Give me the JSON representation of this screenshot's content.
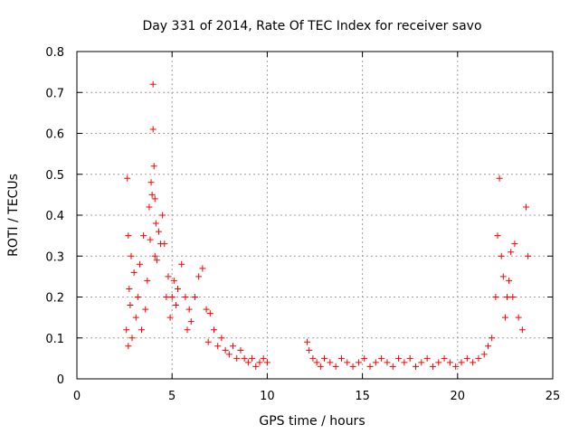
{
  "chart_data": {
    "type": "scatter",
    "title": "Day 331 of 2014, Rate Of TEC Index for receiver savo",
    "xlabel": "GPS time / hours",
    "ylabel": "ROTI / TECUs",
    "xlim": [
      0,
      25
    ],
    "ylim": [
      0,
      0.8
    ],
    "xticks": [
      0,
      5,
      10,
      15,
      20,
      25
    ],
    "yticks": [
      0,
      0.1,
      0.2,
      0.3,
      0.4,
      0.5,
      0.6,
      0.7,
      0.8
    ],
    "xtick_labels": [
      "0",
      "5",
      "10",
      "15",
      "20",
      "25"
    ],
    "ytick_labels": [
      "0",
      "0.1",
      "0.2",
      "0.3",
      "0.4",
      "0.5",
      "0.6",
      "0.7",
      "0.8"
    ],
    "grid": true,
    "marker": "+",
    "color": "#ff0000",
    "series": [
      {
        "x": [
          2.6,
          2.65,
          2.7,
          2.7,
          2.75,
          2.8,
          2.85,
          2.9,
          3.0,
          3.1,
          3.2,
          3.3,
          3.4,
          3.5,
          3.6,
          3.7,
          3.8,
          3.85,
          3.9,
          3.95,
          4.0,
          4.0,
          4.05,
          4.1,
          4.1,
          4.15,
          4.2,
          4.3,
          4.4,
          4.5,
          4.6,
          4.7,
          4.8,
          4.9,
          5.0,
          5.1,
          5.2,
          5.3,
          5.5,
          5.7,
          5.8,
          5.9,
          6.0,
          6.2,
          6.4,
          6.6,
          6.8,
          6.9,
          7.0,
          7.2,
          7.4,
          7.6,
          7.8,
          8.0,
          8.2,
          8.4,
          8.6,
          8.8,
          9.0,
          9.2,
          9.4,
          9.6,
          9.8,
          10.0,
          12.1,
          12.2,
          12.4,
          12.6,
          12.8,
          13.0,
          13.3,
          13.6,
          13.9,
          14.2,
          14.5,
          14.8,
          15.1,
          15.4,
          15.7,
          16.0,
          16.3,
          16.6,
          16.9,
          17.2,
          17.5,
          17.8,
          18.1,
          18.4,
          18.7,
          19.0,
          19.3,
          19.6,
          19.9,
          20.2,
          20.5,
          20.8,
          21.1,
          21.4,
          21.6,
          21.8,
          22.0,
          22.1,
          22.2,
          22.3,
          22.4,
          22.5,
          22.6,
          22.7,
          22.8,
          22.9,
          23.0,
          23.2,
          23.4,
          23.6,
          23.7
        ],
        "y": [
          0.12,
          0.49,
          0.35,
          0.08,
          0.22,
          0.18,
          0.3,
          0.1,
          0.26,
          0.15,
          0.2,
          0.28,
          0.12,
          0.35,
          0.17,
          0.24,
          0.42,
          0.34,
          0.48,
          0.45,
          0.72,
          0.61,
          0.52,
          0.44,
          0.3,
          0.38,
          0.29,
          0.36,
          0.33,
          0.4,
          0.33,
          0.2,
          0.25,
          0.15,
          0.2,
          0.24,
          0.18,
          0.22,
          0.28,
          0.2,
          0.12,
          0.17,
          0.14,
          0.2,
          0.25,
          0.27,
          0.17,
          0.09,
          0.16,
          0.12,
          0.08,
          0.1,
          0.07,
          0.06,
          0.08,
          0.05,
          0.07,
          0.05,
          0.04,
          0.05,
          0.03,
          0.04,
          0.05,
          0.04,
          0.09,
          0.07,
          0.05,
          0.04,
          0.03,
          0.05,
          0.04,
          0.03,
          0.05,
          0.04,
          0.03,
          0.04,
          0.05,
          0.03,
          0.04,
          0.05,
          0.04,
          0.03,
          0.05,
          0.04,
          0.05,
          0.03,
          0.04,
          0.05,
          0.03,
          0.04,
          0.05,
          0.04,
          0.03,
          0.04,
          0.05,
          0.04,
          0.05,
          0.06,
          0.08,
          0.1,
          0.2,
          0.35,
          0.49,
          0.3,
          0.25,
          0.15,
          0.2,
          0.24,
          0.31,
          0.2,
          0.33,
          0.15,
          0.12,
          0.42,
          0.3
        ]
      }
    ]
  }
}
